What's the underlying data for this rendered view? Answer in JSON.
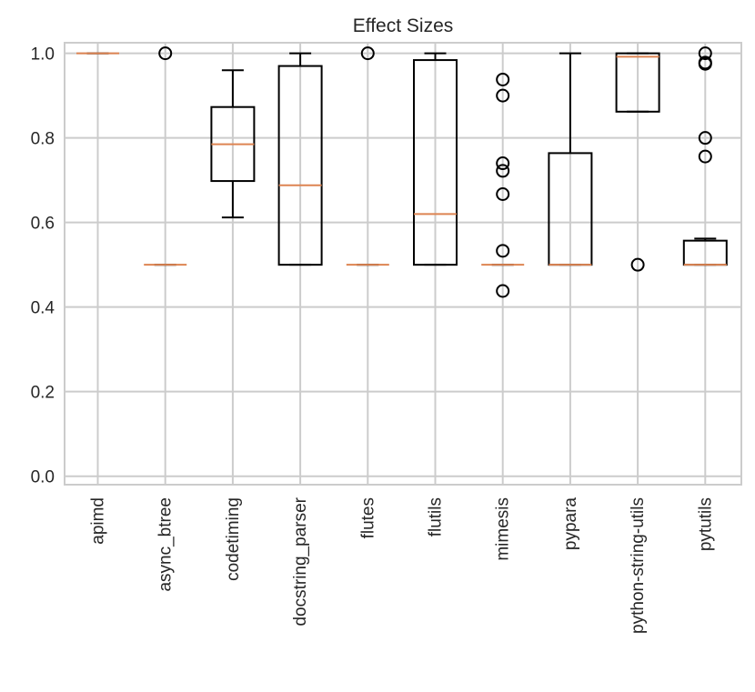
{
  "chart_data": {
    "type": "boxplot",
    "title": "Effect Sizes",
    "xlabel": "",
    "ylabel": "",
    "ylim": [
      -0.02,
      1.025
    ],
    "yticks": [
      0.0,
      0.2,
      0.4,
      0.6,
      0.8,
      1.0
    ],
    "ytick_labels": [
      "0.0",
      "0.2",
      "0.4",
      "0.6",
      "0.8",
      "1.0"
    ],
    "grid": true,
    "colors": {
      "median": "#dd8452",
      "box": "#000000",
      "grid": "#cccccc",
      "spine": "#cccccc"
    },
    "categories": [
      "apimd",
      "async_btree",
      "codetiming",
      "docstring_parser",
      "flutes",
      "flutils",
      "mimesis",
      "pypara",
      "python-string-utils",
      "pytutils"
    ],
    "boxes": [
      {
        "name": "apimd",
        "whisker_low": 1.0,
        "q1": 1.0,
        "median": 1.0,
        "q3": 1.0,
        "whisker_high": 1.0,
        "outliers": []
      },
      {
        "name": "async_btree",
        "whisker_low": 0.5,
        "q1": 0.5,
        "median": 0.5,
        "q3": 0.5,
        "whisker_high": 0.5,
        "outliers": [
          1.0
        ]
      },
      {
        "name": "codetiming",
        "whisker_low": 0.612,
        "q1": 0.698,
        "median": 0.785,
        "q3": 0.873,
        "whisker_high": 0.96,
        "outliers": []
      },
      {
        "name": "docstring_parser",
        "whisker_low": 0.5,
        "q1": 0.5,
        "median": 0.688,
        "q3": 0.97,
        "whisker_high": 1.0,
        "outliers": []
      },
      {
        "name": "flutes",
        "whisker_low": 0.5,
        "q1": 0.5,
        "median": 0.5,
        "q3": 0.5,
        "whisker_high": 0.5,
        "outliers": [
          1.0
        ]
      },
      {
        "name": "flutils",
        "whisker_low": 0.5,
        "q1": 0.5,
        "median": 0.62,
        "q3": 0.984,
        "whisker_high": 1.0,
        "outliers": []
      },
      {
        "name": "mimesis",
        "whisker_low": 0.5,
        "q1": 0.5,
        "median": 0.5,
        "q3": 0.5,
        "whisker_high": 0.5,
        "outliers": [
          0.438,
          0.533,
          0.667,
          0.722,
          0.74,
          0.9,
          0.938
        ]
      },
      {
        "name": "pypara",
        "whisker_low": 0.5,
        "q1": 0.5,
        "median": 0.5,
        "q3": 0.764,
        "whisker_high": 1.0,
        "outliers": []
      },
      {
        "name": "python-string-utils",
        "whisker_low": 0.862,
        "q1": 0.862,
        "median": 0.992,
        "q3": 1.0,
        "whisker_high": 1.0,
        "outliers": [
          0.5
        ]
      },
      {
        "name": "pytutils",
        "whisker_low": 0.5,
        "q1": 0.5,
        "median": 0.5,
        "q3": 0.557,
        "whisker_high": 0.562,
        "outliers": [
          0.756,
          0.8,
          0.975,
          0.978,
          1.0
        ]
      }
    ]
  }
}
